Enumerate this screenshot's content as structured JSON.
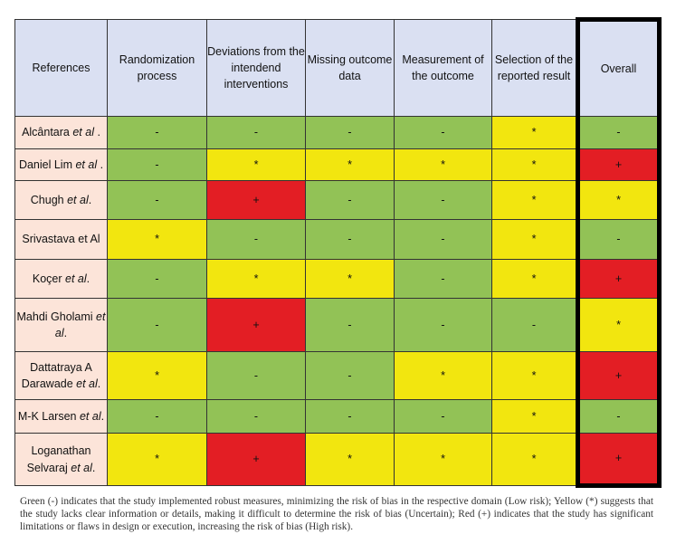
{
  "headers": [
    "References",
    "Randomization process",
    "Deviations from the intendend interventions",
    "Missing outcome data",
    "Measurement of the outcome",
    "Selection of the reported result",
    "Overall"
  ],
  "colors": {
    "low": "#92c256",
    "uncertain": "#f2e60f",
    "high": "#e31e24",
    "header": "#dae0f2",
    "reference": "#fce4d9"
  },
  "symbols": {
    "low": "-",
    "uncertain": "*",
    "high": "+"
  },
  "rows": [
    {
      "name": "Alcântara ",
      "italic": "et al",
      "suffix": " .",
      "ratings": [
        "low",
        "low",
        "low",
        "low",
        "uncertain",
        "low"
      ]
    },
    {
      "name": "Daniel Lim ",
      "italic": "et al",
      "suffix": " .",
      "ratings": [
        "low",
        "uncertain",
        "uncertain",
        "uncertain",
        "uncertain",
        "high"
      ]
    },
    {
      "name": "Chugh ",
      "italic": "et al",
      "suffix": ".",
      "ratings": [
        "low",
        "high",
        "low",
        "low",
        "uncertain",
        "uncertain"
      ]
    },
    {
      "name": "Srivastava et Al",
      "italic": "",
      "suffix": "",
      "ratings": [
        "uncertain",
        "low",
        "low",
        "low",
        "uncertain",
        "low"
      ]
    },
    {
      "name": "Koçer ",
      "italic": "et al",
      "suffix": ".",
      "ratings": [
        "low",
        "uncertain",
        "uncertain",
        "low",
        "uncertain",
        "high"
      ]
    },
    {
      "name": "Mahdi Gholami ",
      "italic": "et al",
      "suffix": ".",
      "ratings": [
        "low",
        "high",
        "low",
        "low",
        "low",
        "uncertain"
      ]
    },
    {
      "name": "Dattatraya A Darawade ",
      "italic": "et al",
      "suffix": ".",
      "ratings": [
        "uncertain",
        "low",
        "low",
        "uncertain",
        "uncertain",
        "high"
      ]
    },
    {
      "name": "M-K Larsen ",
      "italic": "et al",
      "suffix": ".",
      "ratings": [
        "low",
        "low",
        "low",
        "low",
        "uncertain",
        "low"
      ]
    },
    {
      "name": "Loganathan Selvaraj ",
      "italic": "et al",
      "suffix": ".",
      "ratings": [
        "uncertain",
        "high",
        "uncertain",
        "uncertain",
        "uncertain",
        "high"
      ]
    }
  ],
  "caption": "Green (-) indicates that the study implemented robust measures, minimizing the risk of bias in the respective domain (Low risk); Yellow (*) suggests that the study lacks clear information or details, making it difficult to determine the risk of bias (Uncertain); Red (+) indicates that the study has significant limitations or flaws in design or execution, increasing the risk of bias (High risk)."
}
